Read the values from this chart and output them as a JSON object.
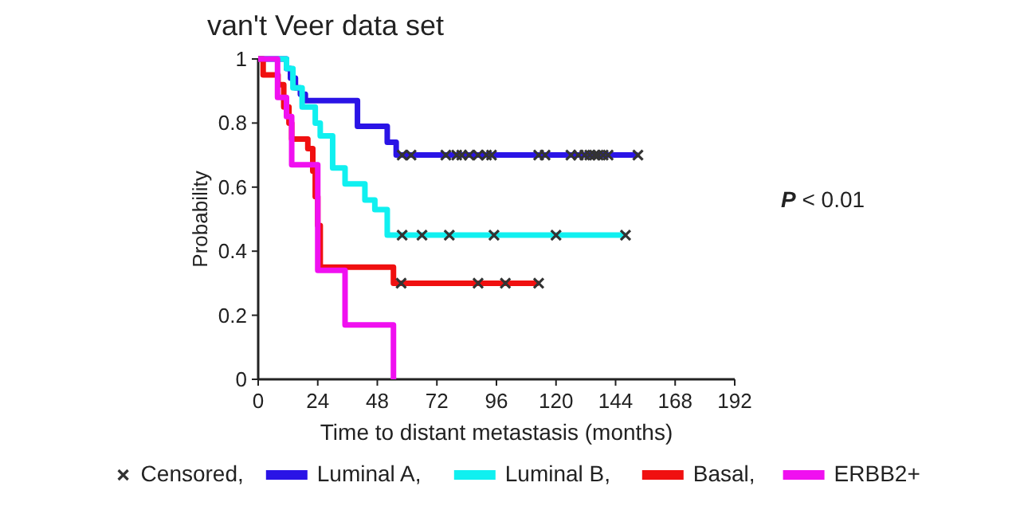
{
  "chart_data": {
    "type": "step",
    "title": "van't Veer data set",
    "xlabel": "Time to distant metastasis (months)",
    "ylabel": "Probability",
    "xlim": [
      0,
      192
    ],
    "xticks": [
      0,
      24,
      48,
      72,
      96,
      120,
      144,
      168,
      192
    ],
    "ylim": [
      0,
      1
    ],
    "yticks": [
      0,
      0.2,
      0.4,
      0.6,
      0.8,
      1
    ],
    "legend": "bottom",
    "grid": false,
    "annotations": [
      "P < 0.01"
    ],
    "series": [
      {
        "name": "Censored,",
        "type": "scatter",
        "marker": "cross",
        "color": "#333333",
        "x": [
          58,
          61.6,
          75.6,
          80,
          82,
          85,
          88.6,
          92,
          94,
          113,
          115.6,
          126,
          129,
          131.6,
          133.6,
          135.5,
          137,
          139,
          141,
          153,
          58,
          66,
          77,
          95,
          120,
          148,
          57.6,
          88.6,
          99.6,
          113
        ],
        "values": [
          0.7,
          0.7,
          0.7,
          0.7,
          0.7,
          0.7,
          0.7,
          0.7,
          0.7,
          0.7,
          0.7,
          0.7,
          0.7,
          0.7,
          0.7,
          0.7,
          0.7,
          0.7,
          0.7,
          0.7,
          0.45,
          0.45,
          0.45,
          0.45,
          0.45,
          0.45,
          0.3,
          0.3,
          0.3,
          0.3
        ]
      },
      {
        "name": "Luminal A,",
        "color": "#2a14e6",
        "x": [
          0,
          11.4,
          13,
          15,
          17,
          19,
          40,
          52,
          55.6,
          153
        ],
        "values": [
          1,
          0.97,
          0.94,
          0.91,
          0.89,
          0.87,
          0.79,
          0.74,
          0.7,
          0.7
        ]
      },
      {
        "name": "Luminal B,",
        "color": "#10f0f0",
        "x": [
          0,
          11.4,
          14,
          17.7,
          23,
          25,
          30,
          35,
          43,
          47,
          52,
          148
        ],
        "values": [
          1,
          0.97,
          0.91,
          0.85,
          0.8,
          0.76,
          0.66,
          0.61,
          0.56,
          0.53,
          0.45,
          0.45
        ]
      },
      {
        "name": "Basal,",
        "color": "#f01010",
        "x": [
          0,
          2,
          8,
          10.3,
          12.4,
          13.5,
          20,
          22,
          23,
          24,
          25,
          54.5,
          113
        ],
        "values": [
          1,
          0.95,
          0.92,
          0.85,
          0.8,
          0.75,
          0.72,
          0.65,
          0.57,
          0.48,
          0.35,
          0.3,
          0.3
        ]
      },
      {
        "name": "ERBB2+",
        "color": "#f010f0",
        "x": [
          0,
          7.8,
          11.4,
          13.5,
          23,
          24,
          35,
          54.5
        ],
        "values": [
          1,
          0.88,
          0.82,
          0.67,
          0.67,
          0.34,
          0.17,
          0
        ]
      }
    ]
  }
}
